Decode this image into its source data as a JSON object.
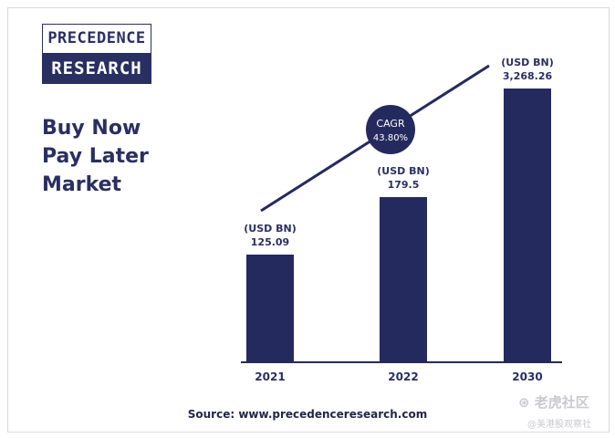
{
  "logo": {
    "line1": "PRECEDENCE",
    "line2": "RESEARCH"
  },
  "title_lines": [
    "Buy Now",
    "Pay Later",
    "Market"
  ],
  "source": "Source: www.precedenceresearch.com",
  "watermark": {
    "main": "⊛ 老虎社区",
    "sub": "@美港股观察社"
  },
  "colors": {
    "bar": "#252a5e",
    "text": "#2a2f62",
    "axis": "#252a5e"
  },
  "chart_data": {
    "type": "bar",
    "categories": [
      "2021",
      "2022",
      "2030"
    ],
    "values": [
      125.09,
      179.5,
      3268.26
    ],
    "unit_label": "(USD BN)",
    "value_labels": [
      "125.09",
      "179.5",
      "3,268.26"
    ],
    "annotation": {
      "label": "CAGR",
      "value": "43.80%"
    },
    "title": "Buy Now Pay Later Market",
    "xlabel": "",
    "ylabel": ""
  }
}
